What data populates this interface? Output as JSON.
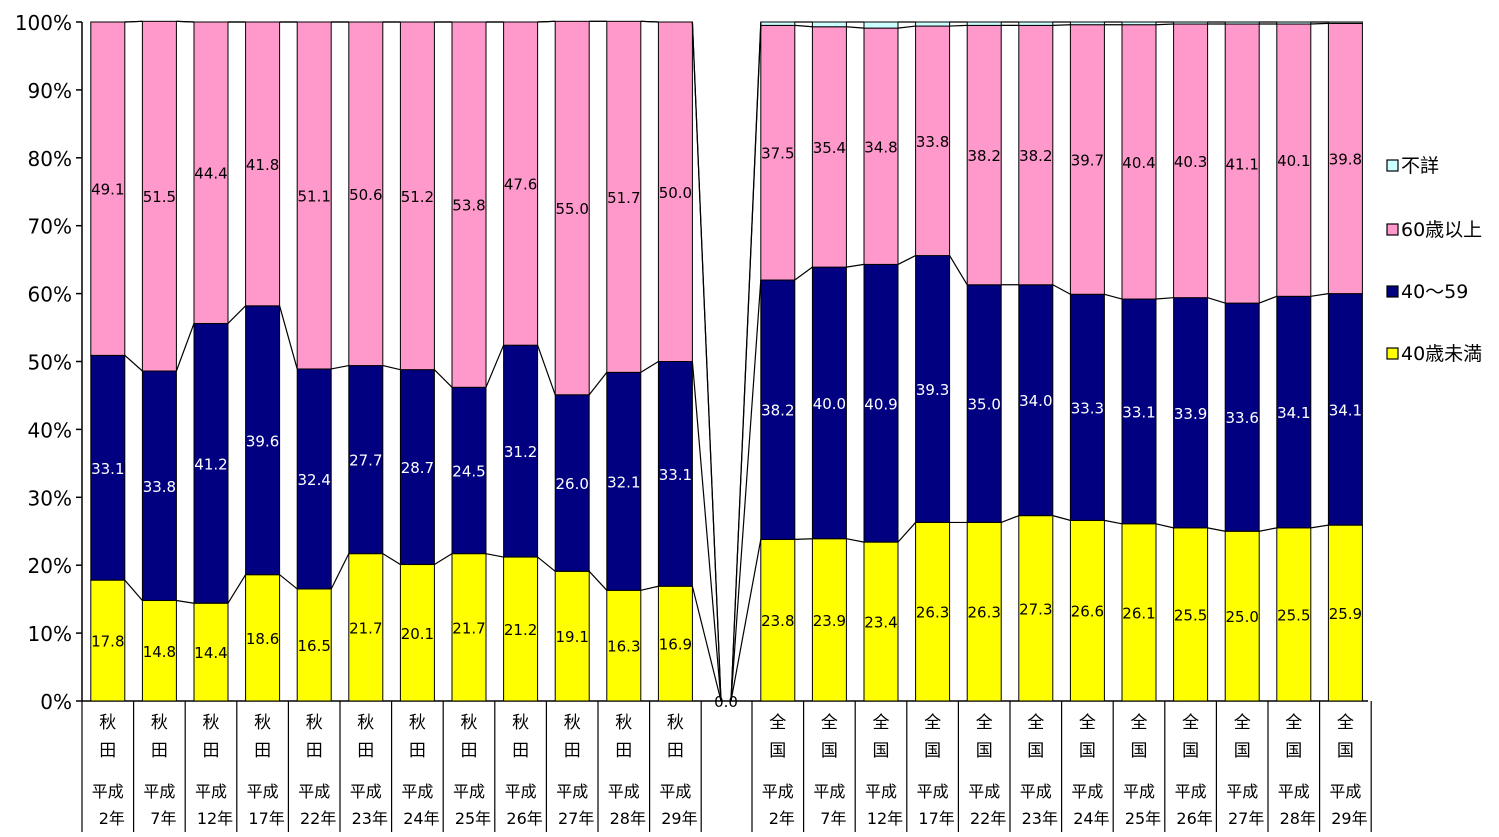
{
  "chart_data": {
    "type": "bar",
    "stacked": true,
    "normalized_percent": true,
    "title": "",
    "xlabel": "",
    "ylabel": "",
    "ylim": [
      0,
      100
    ],
    "y_ticks": [
      "0%",
      "10%",
      "20%",
      "30%",
      "40%",
      "50%",
      "60%",
      "70%",
      "80%",
      "90%",
      "100%"
    ],
    "grid": false,
    "legend_position": "right",
    "series_connector_lines": true,
    "gap_value_label": "0.0",
    "groups": [
      {
        "region": [
          "秋",
          "田"
        ],
        "years": [
          "平成\n2年",
          "平成\n7年",
          "平成\n12年",
          "平成\n17年",
          "平成\n22年",
          "平成\n23年",
          "平成\n24年",
          "平成\n25年",
          "平成\n26年",
          "平成\n27年",
          "平成\n28年",
          "平成\n29年"
        ],
        "series": [
          {
            "name": "40歳未満",
            "values": [
              17.8,
              14.8,
              14.4,
              18.6,
              16.5,
              21.7,
              20.1,
              21.7,
              21.2,
              19.1,
              16.3,
              16.9
            ]
          },
          {
            "name": "40～59",
            "values": [
              33.1,
              33.8,
              41.2,
              39.6,
              32.4,
              27.7,
              28.7,
              24.5,
              31.2,
              26.0,
              32.1,
              33.1
            ]
          },
          {
            "name": "60歳以上",
            "values": [
              49.1,
              51.5,
              44.4,
              41.8,
              51.1,
              50.6,
              51.2,
              53.8,
              47.6,
              55.0,
              51.7,
              50.0
            ]
          },
          {
            "name": "不詳",
            "values": [
              0,
              0,
              0,
              0,
              0,
              0,
              0,
              0,
              0,
              0,
              0,
              0
            ]
          }
        ]
      },
      {
        "region": [
          "全",
          "国"
        ],
        "years": [
          "平成\n2年",
          "平成\n7年",
          "平成\n12年",
          "平成\n17年",
          "平成\n22年",
          "平成\n23年",
          "平成\n24年",
          "平成\n25年",
          "平成\n26年",
          "平成\n27年",
          "平成\n28年",
          "平成\n29年"
        ],
        "series": [
          {
            "name": "40歳未満",
            "values": [
              23.8,
              23.9,
              23.4,
              26.3,
              26.3,
              27.3,
              26.6,
              26.1,
              25.5,
              25.0,
              25.5,
              25.9
            ]
          },
          {
            "name": "40～59",
            "values": [
              38.2,
              40.0,
              40.9,
              39.3,
              35.0,
              34.0,
              33.3,
              33.1,
              33.9,
              33.6,
              34.1,
              34.1
            ]
          },
          {
            "name": "60歳以上",
            "values": [
              37.5,
              35.4,
              34.8,
              33.8,
              38.2,
              38.2,
              39.7,
              40.4,
              40.3,
              41.1,
              40.1,
              39.8
            ]
          },
          {
            "name": "不詳",
            "values": [
              0.5,
              0.7,
              0.9,
              0.6,
              0.5,
              0.5,
              0.4,
              0.4,
              0.3,
              0.3,
              0.3,
              0.2
            ]
          }
        ]
      }
    ],
    "legend": [
      {
        "name": "不詳",
        "color": "#ccffff"
      },
      {
        "name": "60歳以上",
        "color": "#ff99cc"
      },
      {
        "name": "40～59",
        "color": "#000080"
      },
      {
        "name": "40歳未満",
        "color": "#ffff00"
      }
    ],
    "colors": {
      "40歳未満": "#ffff00",
      "40～59": "#000080",
      "60歳以上": "#ff99cc",
      "不詳": "#ccffff"
    },
    "label_colors": {
      "40歳未満": "#000000",
      "40～59": "#ffffff",
      "60歳以上": "#000000",
      "不詳": "#000000"
    }
  }
}
